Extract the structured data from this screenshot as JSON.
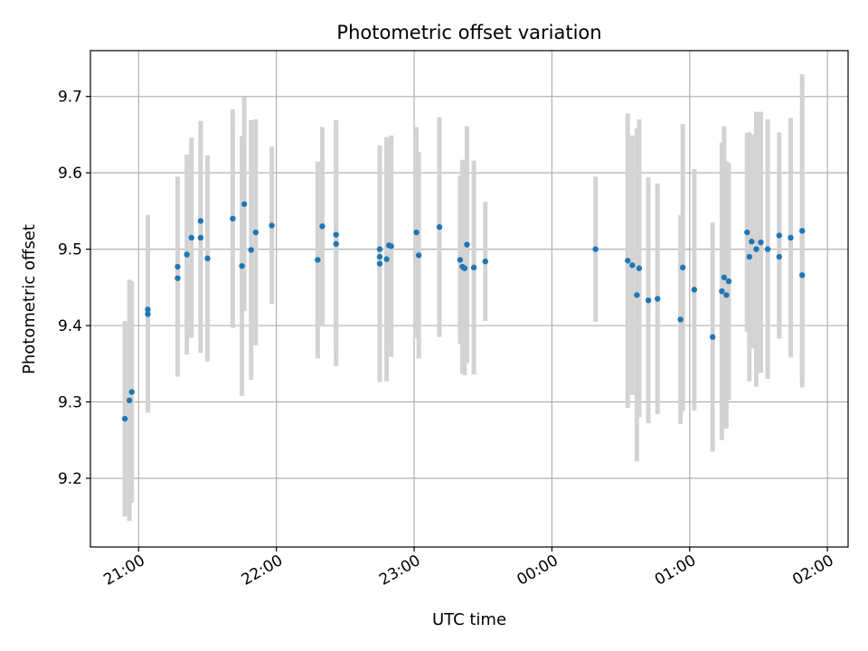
{
  "chart_data": {
    "type": "scatter",
    "title": "Photometric offset variation",
    "xlabel": "UTC time",
    "ylabel": "Photometric offset",
    "x_ticks": [
      "21:00",
      "22:00",
      "23:00",
      "00:00",
      "01:00",
      "02:00"
    ],
    "y_ticks": [
      "9.2",
      "9.3",
      "9.4",
      "9.5",
      "9.6",
      "9.7"
    ],
    "xlim": [
      "20:39",
      "02:09"
    ],
    "ylim": [
      9.11,
      9.76
    ],
    "grid": true,
    "legend": "none",
    "colors": {
      "point": "#1f77b4",
      "errorbar": "#d3d3d3",
      "grid": "#b0b0b0"
    },
    "x": [
      "20:54",
      "20:56",
      "20:57",
      "21:04",
      "21:04",
      "21:17",
      "21:17",
      "21:21",
      "21:23",
      "21:27",
      "21:27",
      "21:30",
      "21:41",
      "21:45",
      "21:46",
      "21:49",
      "21:51",
      "21:58",
      "22:18",
      "22:20",
      "22:26",
      "22:26",
      "22:45",
      "22:45",
      "22:45",
      "22:48",
      "22:49",
      "22:50",
      "23:01",
      "23:02",
      "23:11",
      "23:20",
      "23:21",
      "23:22",
      "23:23",
      "23:26",
      "23:31",
      "00:19",
      "00:33",
      "00:35",
      "00:37",
      "00:38",
      "00:42",
      "00:46",
      "00:56",
      "00:57",
      "01:02",
      "01:10",
      "01:14",
      "01:15",
      "01:16",
      "01:17",
      "01:25",
      "01:26",
      "01:27",
      "01:29",
      "01:31",
      "01:34",
      "01:39",
      "01:39",
      "01:44",
      "01:49",
      "01:49"
    ],
    "y": [
      9.278,
      9.302,
      9.313,
      9.415,
      9.421,
      9.462,
      9.477,
      9.493,
      9.515,
      9.515,
      9.537,
      9.488,
      9.54,
      9.478,
      9.559,
      9.499,
      9.522,
      9.531,
      9.486,
      9.53,
      9.507,
      9.519,
      9.481,
      9.49,
      9.5,
      9.487,
      9.505,
      9.504,
      9.522,
      9.492,
      9.529,
      9.486,
      9.477,
      9.475,
      9.506,
      9.476,
      9.484,
      9.5,
      9.485,
      9.479,
      9.44,
      9.475,
      9.433,
      9.435,
      9.408,
      9.476,
      9.447,
      9.385,
      9.445,
      9.463,
      9.44,
      9.458,
      9.522,
      9.49,
      9.51,
      9.5,
      9.509,
      9.5,
      9.518,
      9.49,
      9.515,
      9.524,
      9.466
    ],
    "y_err": [
      0.128,
      0.158,
      0.145,
      0.129,
      0.124,
      0.129,
      0.118,
      0.131,
      0.131,
      0.151,
      0.131,
      0.135,
      0.143,
      0.17,
      0.14,
      0.17,
      0.148,
      0.103,
      0.129,
      0.13,
      0.16,
      0.15,
      0.155,
      0.14,
      0.12,
      0.16,
      0.13,
      0.145,
      0.138,
      0.135,
      0.144,
      0.11,
      0.14,
      0.14,
      0.155,
      0.14,
      0.078,
      0.095,
      0.193,
      0.17,
      0.218,
      0.195,
      0.161,
      0.151,
      0.137,
      0.188,
      0.158,
      0.15,
      0.195,
      0.198,
      0.175,
      0.155,
      0.13,
      0.163,
      0.14,
      0.18,
      0.171,
      0.17,
      0.135,
      0.107,
      0.157,
      0.205,
      0.13
    ]
  }
}
